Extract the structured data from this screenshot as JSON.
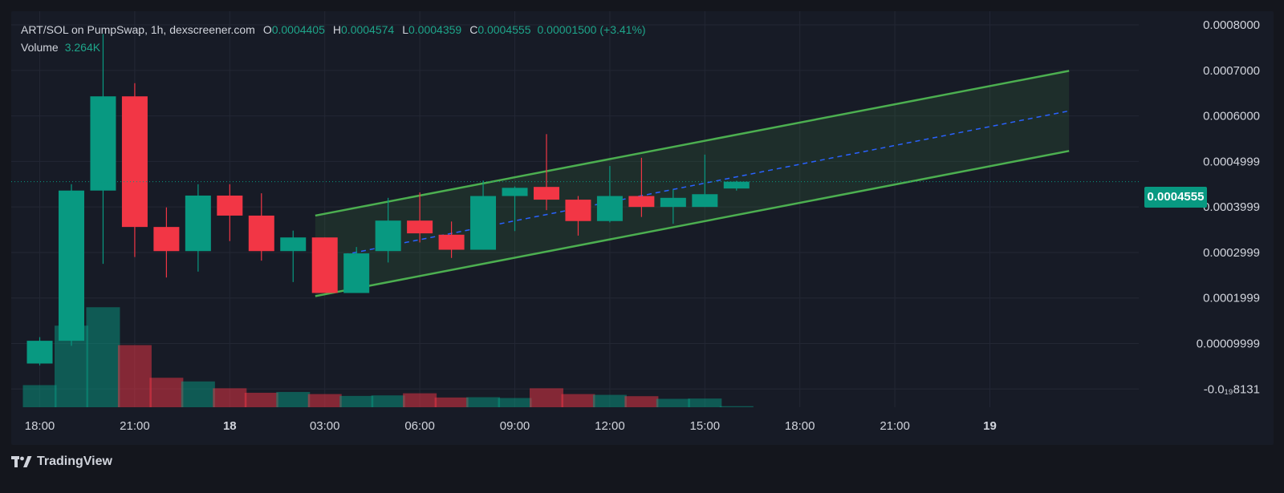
{
  "legend": {
    "symbol": "ART/SOL on PumpSwap, 1h, dexscreener.com",
    "o_label": "O",
    "o_value": "0.0004405",
    "h_label": "H",
    "h_value": "0.0004574",
    "l_label": "L",
    "l_value": "0.0004359",
    "c_label": "C",
    "c_value": "0.0004555",
    "change": "0.00001500 (+3.41%)",
    "volume_label": "Volume",
    "volume_value": "3.264K"
  },
  "price_badge": "0.0004555",
  "brand": "TradingView",
  "colors": {
    "up": "#089981",
    "down": "#f23645",
    "channel": "#4caf50",
    "channel_fill": "#4caf50",
    "midline": "#2962ff",
    "grid": "#232734",
    "axis_text": "#d1d4dc",
    "background": "#171b26"
  },
  "chart_data": {
    "type": "candlestick",
    "y_tick_labels": [
      "0.0008000",
      "0.0007000",
      "0.0006000",
      "0.0004999",
      "0.0003999",
      "0.0002999",
      "0.0001999",
      "0.00009999",
      "-0.0₁₉8131"
    ],
    "y_tick_values": [
      0.0008,
      0.0007,
      0.0006,
      0.0005,
      0.0004,
      0.0003,
      0.0002,
      0.0001,
      0.0
    ],
    "x_tick_labels": [
      "18:00",
      "21:00",
      "18",
      "03:00",
      "06:00",
      "09:00",
      "12:00",
      "15:00",
      "18:00",
      "21:00",
      "19"
    ],
    "x_tick_hours": [
      0,
      3,
      6,
      9,
      12,
      15,
      18,
      21,
      24,
      27,
      30
    ],
    "ylim": [
      -4e-05,
      0.00083
    ],
    "xlim": [
      -0.9,
      34.7
    ],
    "current_price": 0.0004555,
    "candles": [
      {
        "t": 0,
        "o": 5.6e-05,
        "h": 0.000114,
        "l": 5.2e-05,
        "c": 0.000106,
        "v": 420
      },
      {
        "t": 1,
        "o": 0.000106,
        "h": 0.00045,
        "l": 9.5e-05,
        "c": 0.000436,
        "v": 1550
      },
      {
        "t": 2,
        "o": 0.000436,
        "h": 0.00078,
        "l": 0.000275,
        "c": 0.000643,
        "v": 1900
      },
      {
        "t": 3,
        "o": 0.000643,
        "h": 0.000672,
        "l": 0.00029,
        "c": 0.000356,
        "v": 1180
      },
      {
        "t": 4,
        "o": 0.000356,
        "h": 0.000399,
        "l": 0.000245,
        "c": 0.000303,
        "v": 560
      },
      {
        "t": 5,
        "o": 0.000303,
        "h": 0.00045,
        "l": 0.000258,
        "c": 0.000425,
        "v": 490
      },
      {
        "t": 6,
        "o": 0.000425,
        "h": 0.00045,
        "l": 0.000325,
        "c": 0.000381,
        "v": 360
      },
      {
        "t": 7,
        "o": 0.000381,
        "h": 0.00043,
        "l": 0.000282,
        "c": 0.000303,
        "v": 275
      },
      {
        "t": 8,
        "o": 0.000303,
        "h": 0.000348,
        "l": 0.000235,
        "c": 0.000333,
        "v": 290
      },
      {
        "t": 9,
        "o": 0.000333,
        "h": 0.000333,
        "l": 0.000211,
        "c": 0.000211,
        "v": 250
      },
      {
        "t": 10,
        "o": 0.000211,
        "h": 0.000312,
        "l": 0.000211,
        "c": 0.000298,
        "v": 215
      },
      {
        "t": 11,
        "o": 0.000303,
        "h": 0.00042,
        "l": 0.000278,
        "c": 0.00037,
        "v": 225
      },
      {
        "t": 12,
        "o": 0.00037,
        "h": 0.000432,
        "l": 0.000322,
        "c": 0.000342,
        "v": 265
      },
      {
        "t": 13,
        "o": 0.000339,
        "h": 0.000368,
        "l": 0.000288,
        "c": 0.000306,
        "v": 185
      },
      {
        "t": 14,
        "o": 0.000306,
        "h": 0.000458,
        "l": 0.000306,
        "c": 0.000424,
        "v": 190
      },
      {
        "t": 15,
        "o": 0.000424,
        "h": 0.000445,
        "l": 0.000347,
        "c": 0.000442,
        "v": 175
      },
      {
        "t": 16,
        "o": 0.000444,
        "h": 0.00056,
        "l": 0.000393,
        "c": 0.000416,
        "v": 360
      },
      {
        "t": 17,
        "o": 0.000416,
        "h": 0.000424,
        "l": 0.000337,
        "c": 0.000369,
        "v": 250
      },
      {
        "t": 18,
        "o": 0.000369,
        "h": 0.00049,
        "l": 0.000366,
        "c": 0.000424,
        "v": 235
      },
      {
        "t": 19,
        "o": 0.000424,
        "h": 0.000508,
        "l": 0.000378,
        "c": 0.0004,
        "v": 210
      },
      {
        "t": 20,
        "o": 0.0004,
        "h": 0.000438,
        "l": 0.000363,
        "c": 0.00042,
        "v": 160
      },
      {
        "t": 21,
        "o": 0.0004,
        "h": 0.000515,
        "l": 0.0004,
        "c": 0.000428,
        "v": 165
      },
      {
        "t": 22,
        "o": 0.0004405,
        "h": 0.0004574,
        "l": 0.0004359,
        "c": 0.0004555,
        "v": 20
      }
    ],
    "volume_max": 1980,
    "channel": {
      "upper": {
        "t0": 8.7,
        "p0": 0.000381,
        "t1": 32.5,
        "p1": 0.000699
      },
      "lower": {
        "t0": 8.7,
        "p0": 0.000204,
        "t1": 32.5,
        "p1": 0.000523
      },
      "middle": {
        "t0": 9.6,
        "p0": 0.000295,
        "t1": 32.5,
        "p1": 0.000611
      }
    }
  }
}
